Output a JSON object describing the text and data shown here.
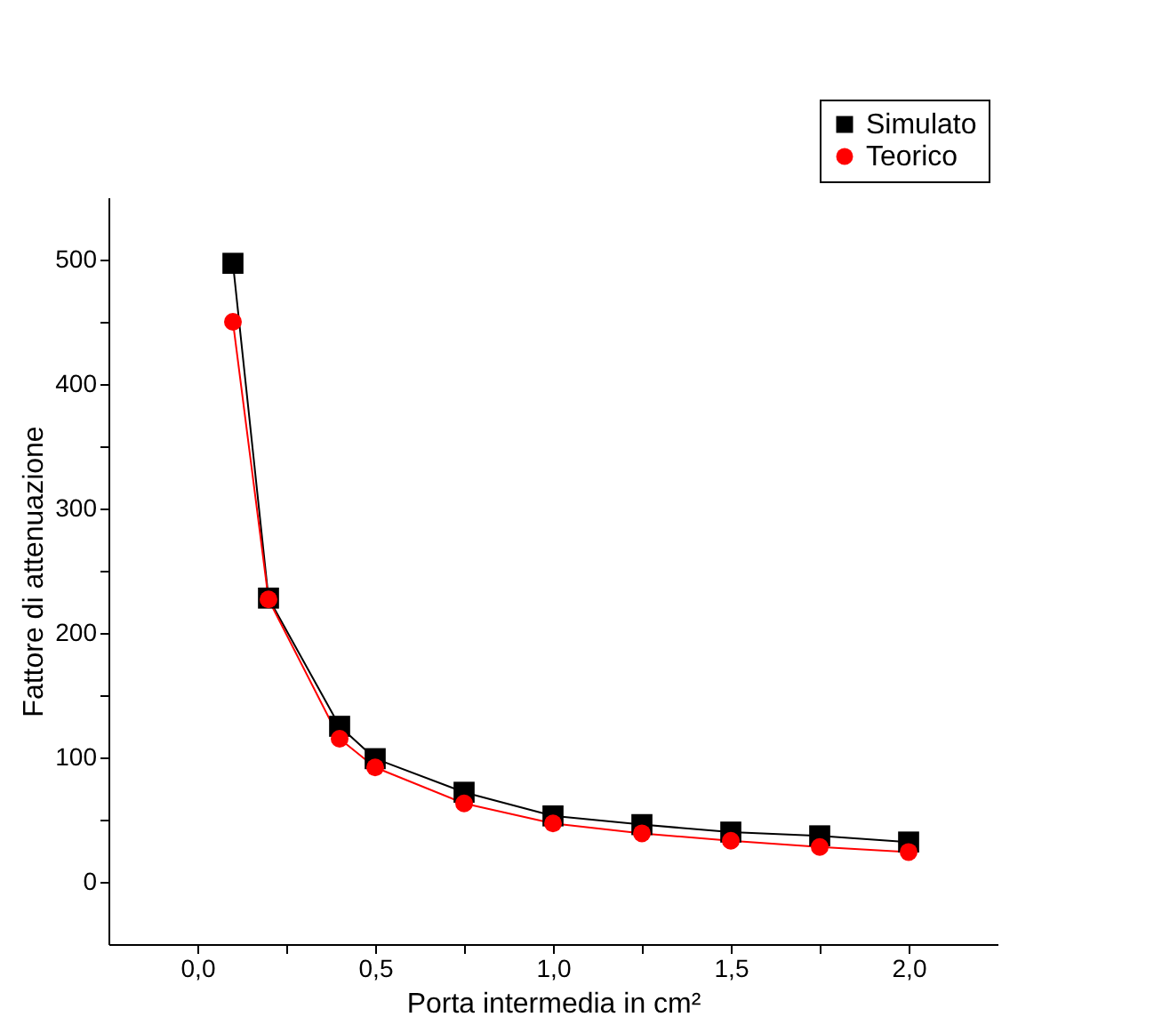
{
  "chart_data": {
    "type": "line",
    "xlabel": "Porta intermedia in cm²",
    "ylabel": "Fattore di attenuazione",
    "x": [
      0.1,
      0.2,
      0.4,
      0.5,
      0.75,
      1.0,
      1.25,
      1.5,
      1.75,
      2.0
    ],
    "series": [
      {
        "name": "Simulato",
        "color": "#000000",
        "marker": "square",
        "values": [
          497,
          228,
          125,
          99,
          72,
          53,
          46,
          40,
          37,
          32
        ]
      },
      {
        "name": "Teorico",
        "color": "#ff0000",
        "marker": "circle",
        "values": [
          450,
          227,
          115,
          92,
          63,
          47,
          39,
          33,
          28,
          24
        ]
      }
    ],
    "xlim": [
      -0.25,
      2.25
    ],
    "ylim": [
      -50,
      550
    ],
    "xticks": [
      {
        "value": 0.0,
        "label": "0,0"
      },
      {
        "value": 0.25,
        "label": null
      },
      {
        "value": 0.5,
        "label": "0,5"
      },
      {
        "value": 0.75,
        "label": null
      },
      {
        "value": 1.0,
        "label": "1,0"
      },
      {
        "value": 1.25,
        "label": null
      },
      {
        "value": 1.5,
        "label": "1,5"
      },
      {
        "value": 1.75,
        "label": null
      },
      {
        "value": 2.0,
        "label": "2,0"
      }
    ],
    "yticks": [
      0,
      {
        "value": 50,
        "label": null
      },
      100,
      {
        "value": 150,
        "label": null
      },
      200,
      {
        "value": 250,
        "label": null
      },
      300,
      {
        "value": 350,
        "label": null
      },
      400,
      {
        "value": 450,
        "label": null
      },
      500
    ],
    "grid": false,
    "legend": "top right",
    "line_style": "solid"
  }
}
